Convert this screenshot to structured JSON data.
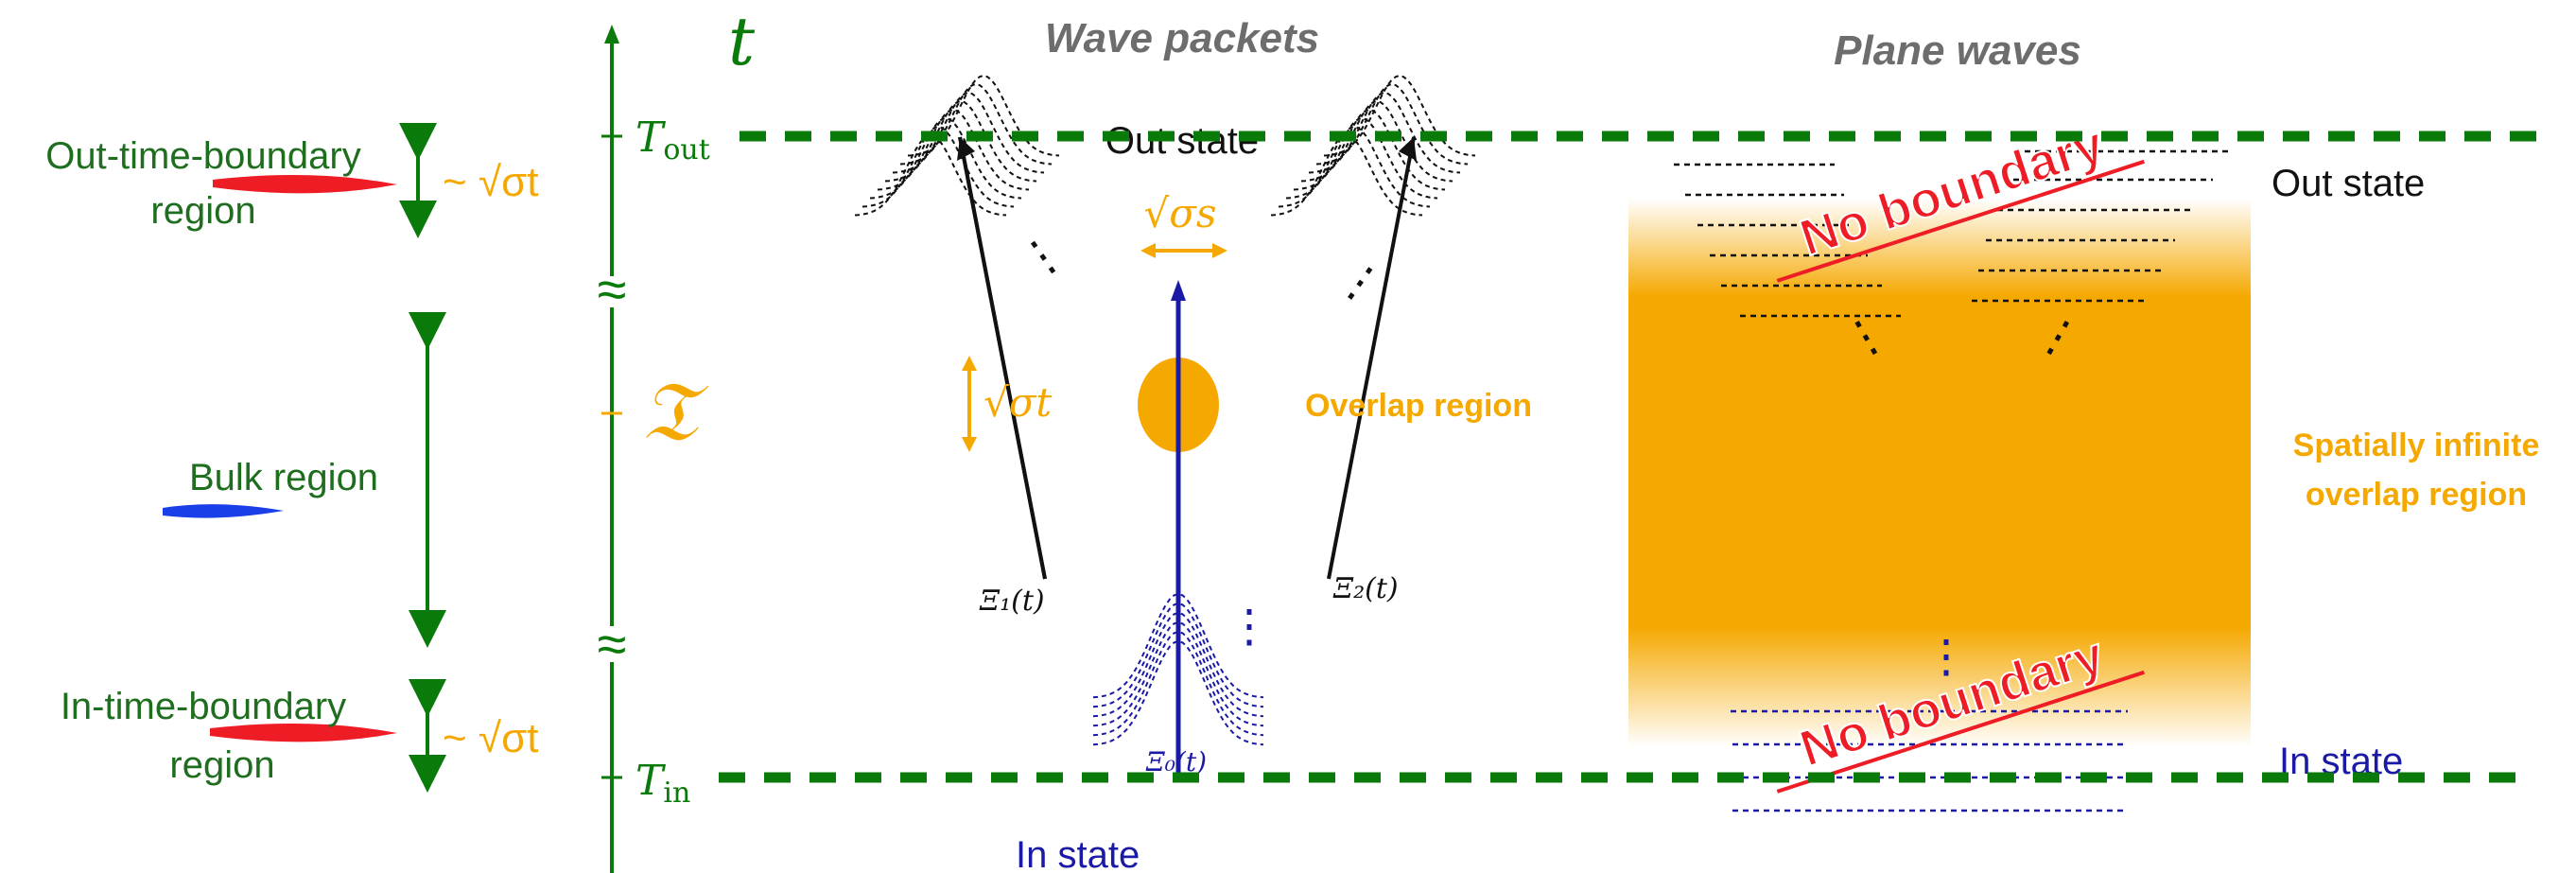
{
  "headings": {
    "wave_packets": "Wave packets",
    "plane_waves": "Plane waves"
  },
  "axis": {
    "t": "t",
    "T_out": "T",
    "T_out_sub": "out",
    "T_in": "T",
    "T_in_sub": "in",
    "curly_T": "𝔗",
    "break_mark": "≈"
  },
  "regions": {
    "out_boundary_line1": "Out-time-boundary",
    "out_boundary_line2": "region",
    "bulk": "Bulk region",
    "in_boundary_line1": "In-time-boundary",
    "in_boundary_line2": "region",
    "sqrt_sigma_t_top": "~ √σt",
    "sqrt_sigma_t_bottom": "~ √σt"
  },
  "packets": {
    "out_state": "Out state",
    "in_state": "In state",
    "overlap": "Overlap region",
    "sqrt_sigma_s": "√σs",
    "sqrt_sigma_t": "√σt",
    "xi1": "Ξ₁(t)",
    "xi2": "Ξ₂(t)",
    "xi0": "Ξ₀(t)",
    "dots": "⋮"
  },
  "plane": {
    "out_state": "Out state",
    "in_state": "In state",
    "no_boundary_top": "No boundary",
    "no_boundary_bottom": "No boundary",
    "infinite_line1": "Spatially infinite",
    "infinite_line2": "overlap region"
  },
  "colors": {
    "green": "#0a7a0a",
    "dark_green": "#1f6e1f",
    "orange": "#f5a800",
    "navy": "#1a1aa6",
    "red": "#ee1c25",
    "grey": "#6d6d6d"
  }
}
